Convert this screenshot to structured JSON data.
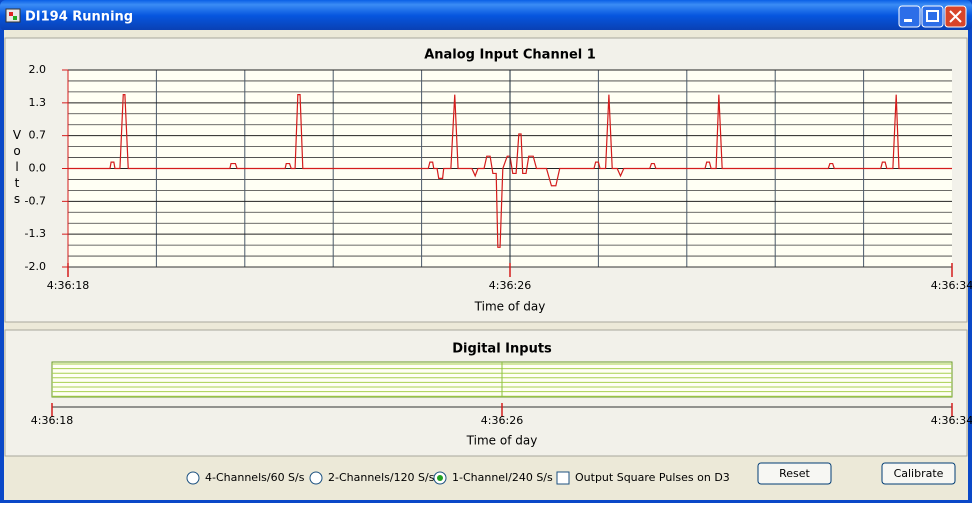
{
  "window": {
    "title": "DI194 Running"
  },
  "chart_data": [
    {
      "type": "line",
      "title": "Analog Input Channel 1",
      "ylabel": "Volts",
      "xlabel": "Time of day",
      "xlim": [
        18,
        34
      ],
      "xticks": [
        {
          "value": 18,
          "label": "4:36:18"
        },
        {
          "value": 26,
          "label": "4:36:26"
        },
        {
          "value": 34,
          "label": "4:36:34"
        }
      ],
      "ylim": [
        -2,
        2
      ],
      "yticks": [
        {
          "value": 2,
          "label": "2.0"
        },
        {
          "value": 1.333,
          "label": "1.3"
        },
        {
          "value": 0.667,
          "label": "0.7"
        },
        {
          "value": 0,
          "label": "0.0"
        },
        {
          "value": -0.667,
          "label": "-0.7"
        },
        {
          "value": -1.333,
          "label": "-1.3"
        },
        {
          "value": -2,
          "label": "-2.0"
        }
      ],
      "grid": true,
      "x": [
        18.0,
        18.76,
        18.78,
        18.83,
        18.85,
        18.94,
        19.0,
        19.03,
        19.09,
        20.93,
        20.95,
        21.03,
        21.06,
        21.93,
        21.95,
        22.01,
        22.04,
        22.11,
        22.16,
        22.2,
        22.25,
        24.52,
        24.55,
        24.6,
        24.62,
        24.68,
        24.71,
        24.78,
        24.8,
        24.93,
        25.0,
        25.06,
        25.31,
        25.37,
        25.42,
        25.53,
        25.58,
        25.64,
        25.69,
        25.75,
        25.78,
        25.82,
        25.87,
        25.95,
        26.0,
        26.05,
        26.11,
        26.16,
        26.2,
        26.23,
        26.29,
        26.34,
        26.42,
        26.48,
        26.66,
        26.75,
        26.83,
        26.9,
        27.52,
        27.55,
        27.6,
        27.63,
        27.73,
        27.79,
        27.85,
        27.94,
        28.0,
        28.06,
        28.53,
        28.56,
        28.61,
        28.64,
        29.53,
        29.56,
        29.61,
        29.64,
        29.73,
        29.78,
        29.84,
        31.76,
        31.79,
        31.84,
        31.87,
        32.71,
        32.74,
        32.79,
        32.82,
        32.93,
        32.99,
        33.04,
        34.0
      ],
      "series": [
        {
          "color": "#d41c1c",
          "values": [
            0,
            0,
            0.13,
            0.13,
            0,
            0,
            1.5,
            1.5,
            0,
            0,
            0.1,
            0.1,
            0,
            0,
            0.1,
            0.1,
            0,
            0,
            1.5,
            1.5,
            0,
            0,
            0.13,
            0.13,
            0,
            0,
            -0.2,
            -0.2,
            0,
            0,
            1.5,
            0,
            0,
            -0.15,
            0,
            0,
            0.25,
            0.25,
            -0.1,
            -0.1,
            -1.6,
            -1.6,
            0,
            0.25,
            0.25,
            -0.1,
            -0.1,
            0.7,
            0.7,
            -0.1,
            -0.1,
            0.25,
            0.25,
            0,
            0,
            -0.35,
            -0.35,
            0,
            0,
            0.13,
            0.13,
            0,
            0,
            1.5,
            0,
            0,
            -0.15,
            0,
            0,
            0.1,
            0.1,
            0,
            0,
            0.13,
            0.13,
            0,
            0,
            1.5,
            0,
            0,
            0.1,
            0.1,
            0,
            0,
            0.13,
            0.13,
            0,
            0,
            1.5,
            0,
            0
          ]
        }
      ]
    },
    {
      "type": "digital",
      "title": "Digital Inputs",
      "xlabel": "Time of day",
      "xlim": [
        18,
        34
      ],
      "xticks": [
        {
          "value": 18,
          "label": "4:36:18"
        },
        {
          "value": 26,
          "label": "4:36:26"
        },
        {
          "value": 34,
          "label": "4:36:34"
        }
      ],
      "grid": true
    }
  ],
  "controls": {
    "radios": [
      {
        "label": "4-Channels/60 S/s",
        "checked": false
      },
      {
        "label": "2-Channels/120 S/s",
        "checked": false
      },
      {
        "label": "1-Channel/240 S/s",
        "checked": true
      }
    ],
    "checkbox": {
      "label": "Output Square Pulses on D3",
      "checked": false
    },
    "buttons": [
      "Reset",
      "Calibrate"
    ]
  }
}
